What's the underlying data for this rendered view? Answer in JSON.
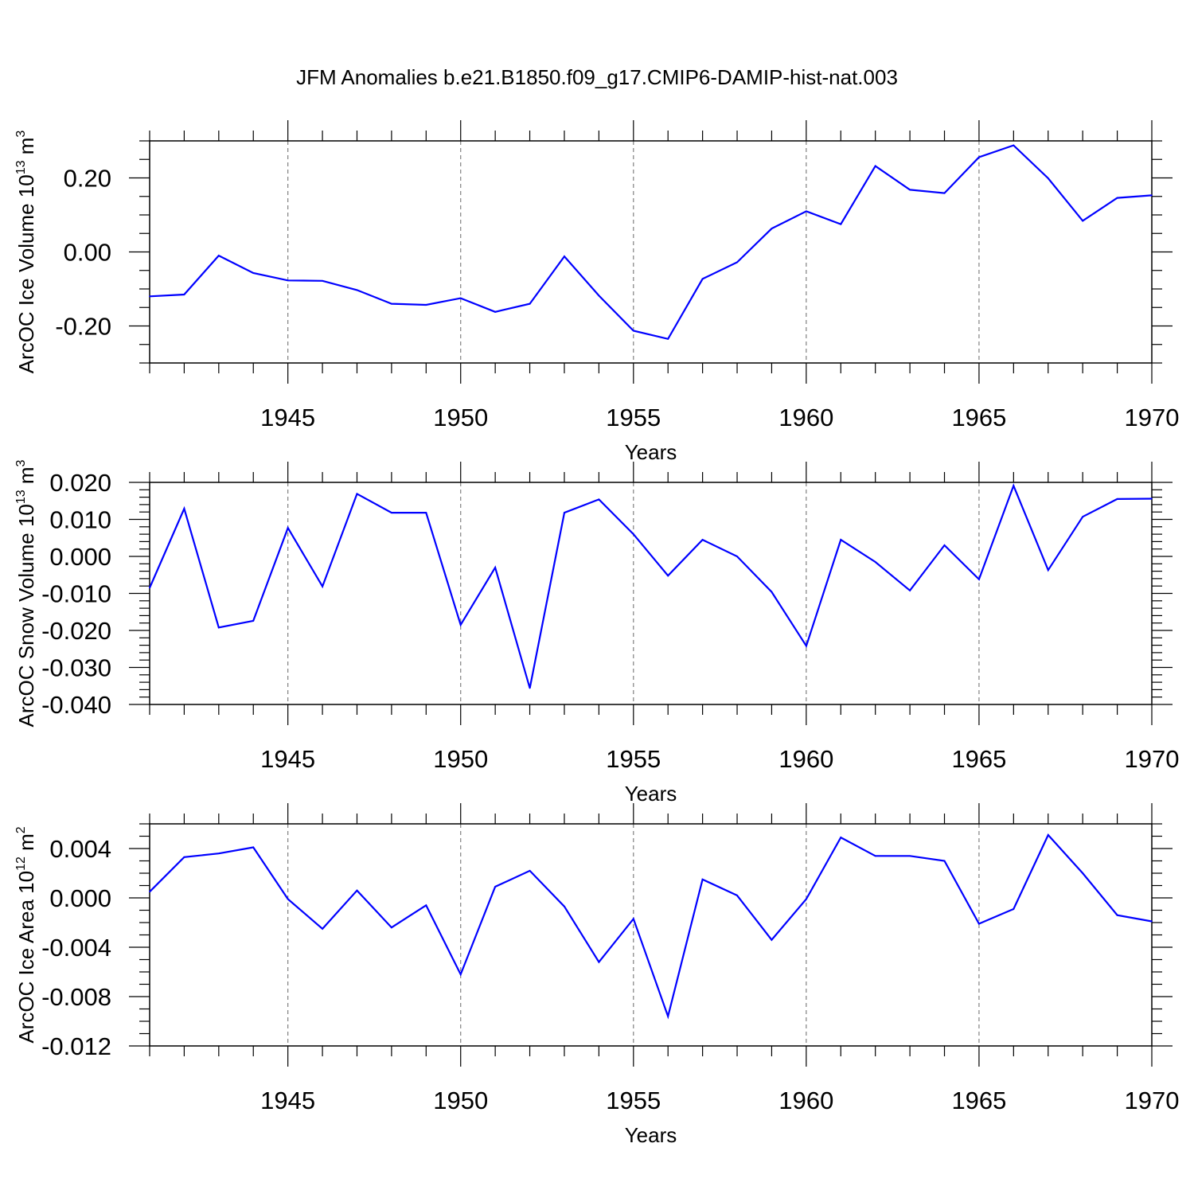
{
  "title": "JFM Anomalies b.e21.B1850.f09_g17.CMIP6-DAMIP-hist-nat.003",
  "colors": {
    "line": "#0000ff",
    "axis": "#000000",
    "grid": "#808080"
  },
  "chart_data": [
    {
      "type": "line",
      "title": "",
      "ylabel": "ArcOC Ice Volume 10",
      "ylabel_exp": "13",
      "ylabel_unit": " m",
      "ylabel_unit_exp": "3",
      "xlabel": "Years",
      "xlim": [
        1941,
        1970
      ],
      "ylim": [
        -0.3,
        0.3
      ],
      "yticks": [
        -0.2,
        0.0,
        0.2
      ],
      "ytick_labels": [
        "-0.20",
        "0.00",
        "0.20"
      ],
      "yminor_step": 0.05,
      "xticks": [
        1945,
        1950,
        1955,
        1960,
        1965,
        1970
      ],
      "xtick_labels": [
        "1945",
        "1950",
        "1955",
        "1960",
        "1965",
        "1970"
      ],
      "grid": "vertical dashed at major x ticks",
      "x": [
        1941,
        1942,
        1943,
        1944,
        1945,
        1946,
        1947,
        1948,
        1949,
        1950,
        1951,
        1952,
        1953,
        1954,
        1955,
        1956,
        1957,
        1958,
        1959,
        1960,
        1961,
        1962,
        1963,
        1964,
        1965,
        1966,
        1967,
        1968,
        1969,
        1970
      ],
      "series": [
        {
          "name": "ArcOC Ice Volume",
          "values": [
            -0.12,
            -0.115,
            -0.01,
            -0.057,
            -0.077,
            -0.078,
            -0.103,
            -0.14,
            -0.143,
            -0.125,
            -0.162,
            -0.14,
            -0.012,
            -0.118,
            -0.213,
            -0.235,
            -0.073,
            -0.028,
            0.063,
            0.11,
            0.075,
            0.232,
            0.168,
            0.159,
            0.256,
            0.288,
            0.199,
            0.084,
            0.146,
            0.153
          ]
        }
      ]
    },
    {
      "type": "line",
      "title": "",
      "ylabel": "ArcOC Snow Volume 10",
      "ylabel_exp": "13",
      "ylabel_unit": " m",
      "ylabel_unit_exp": "3",
      "xlabel": "Years",
      "xlim": [
        1941,
        1970
      ],
      "ylim": [
        -0.04,
        0.02
      ],
      "yticks": [
        -0.04,
        -0.03,
        -0.02,
        -0.01,
        0.0,
        0.01,
        0.02
      ],
      "ytick_labels": [
        "-0.040",
        "-0.030",
        "-0.020",
        "-0.010",
        "0.000",
        "0.010",
        "0.020"
      ],
      "yminor_step": 0.002,
      "xticks": [
        1945,
        1950,
        1955,
        1960,
        1965,
        1970
      ],
      "xtick_labels": [
        "1945",
        "1950",
        "1955",
        "1960",
        "1965",
        "1970"
      ],
      "grid": "vertical dashed at major x ticks",
      "x": [
        1941,
        1942,
        1943,
        1944,
        1945,
        1946,
        1947,
        1948,
        1949,
        1950,
        1951,
        1952,
        1953,
        1954,
        1955,
        1956,
        1957,
        1958,
        1959,
        1960,
        1961,
        1962,
        1963,
        1964,
        1965,
        1966,
        1967,
        1968,
        1969,
        1970
      ],
      "series": [
        {
          "name": "ArcOC Snow Volume",
          "values": [
            -0.0085,
            0.0129,
            -0.0192,
            -0.0174,
            0.0077,
            -0.0081,
            0.0169,
            0.0118,
            0.0118,
            -0.0185,
            -0.003,
            -0.0356,
            0.0118,
            0.0154,
            0.006,
            -0.0052,
            0.0045,
            0.0,
            -0.0096,
            -0.0242,
            0.0045,
            -0.0015,
            -0.0092,
            0.003,
            -0.0062,
            0.0191,
            -0.0037,
            0.0107,
            0.0155,
            0.0156
          ]
        }
      ]
    },
    {
      "type": "line",
      "title": "",
      "ylabel": "ArcOC Ice Area 10",
      "ylabel_exp": "12",
      "ylabel_unit": " m",
      "ylabel_unit_exp": "2",
      "xlabel": "Years",
      "xlim": [
        1941,
        1970
      ],
      "ylim": [
        -0.012,
        0.006
      ],
      "yticks": [
        -0.012,
        -0.008,
        -0.004,
        0.0,
        0.004
      ],
      "ytick_labels": [
        "-0.012",
        "-0.008",
        "-0.004",
        "0.000",
        "0.004"
      ],
      "yminor_step": 0.001,
      "xticks": [
        1945,
        1950,
        1955,
        1960,
        1965,
        1970
      ],
      "xtick_labels": [
        "1945",
        "1950",
        "1955",
        "1960",
        "1965",
        "1970"
      ],
      "grid": "vertical dashed at major x ticks",
      "x": [
        1941,
        1942,
        1943,
        1944,
        1945,
        1946,
        1947,
        1948,
        1949,
        1950,
        1951,
        1952,
        1953,
        1954,
        1955,
        1956,
        1957,
        1958,
        1959,
        1960,
        1961,
        1962,
        1963,
        1964,
        1965,
        1966,
        1967,
        1968,
        1969,
        1970
      ],
      "series": [
        {
          "name": "ArcOC Ice Area",
          "values": [
            0.0005,
            0.0033,
            0.0036,
            0.0041,
            -0.0001,
            -0.0025,
            0.0006,
            -0.0024,
            -0.0006,
            -0.0062,
            0.0009,
            0.0022,
            -0.0007,
            -0.0052,
            -0.0017,
            -0.0096,
            0.0015,
            0.0002,
            -0.0034,
            -0.0001,
            0.0049,
            0.0034,
            0.0034,
            0.003,
            -0.0021,
            -0.0009,
            0.0051,
            0.002,
            -0.0014,
            -0.0019
          ]
        }
      ]
    }
  ]
}
